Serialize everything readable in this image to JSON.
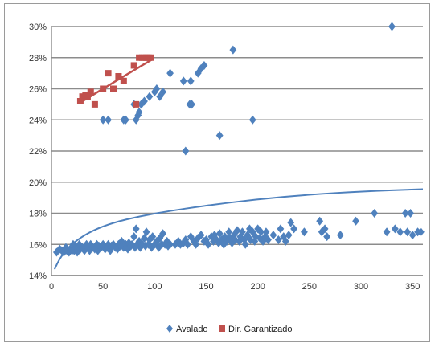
{
  "chart_data": {
    "type": "scatter",
    "title": "",
    "xlabel": "",
    "ylabel": "",
    "xlim": [
      0,
      360
    ],
    "ylim": [
      14,
      30
    ],
    "xticks": [
      0,
      50,
      100,
      150,
      200,
      250,
      300,
      350
    ],
    "yticks": [
      14,
      16,
      18,
      20,
      22,
      24,
      26,
      28,
      30
    ],
    "ytick_labels": [
      "14%",
      "16%",
      "18%",
      "20%",
      "22%",
      "24%",
      "26%",
      "28%",
      "30%"
    ],
    "grid": "horizontal",
    "legend_position": "bottom",
    "series": [
      {
        "name": "Avalado",
        "marker": "diamond",
        "color": "#4f81bd",
        "points": [
          [
            5,
            15.5
          ],
          [
            8,
            15.7
          ],
          [
            10,
            15.6
          ],
          [
            12,
            15.5
          ],
          [
            14,
            15.8
          ],
          [
            15,
            15.6
          ],
          [
            17,
            15.5
          ],
          [
            18,
            15.7
          ],
          [
            20,
            15.6
          ],
          [
            21,
            16
          ],
          [
            22,
            15.6
          ],
          [
            24,
            15.8
          ],
          [
            25,
            15.5
          ],
          [
            27,
            16
          ],
          [
            28,
            15.7
          ],
          [
            30,
            15.8
          ],
          [
            32,
            15.6
          ],
          [
            34,
            16
          ],
          [
            35,
            15.8
          ],
          [
            37,
            15.6
          ],
          [
            38,
            16
          ],
          [
            40,
            15.8
          ],
          [
            42,
            15.7
          ],
          [
            44,
            16
          ],
          [
            45,
            15.6
          ],
          [
            46,
            15.9
          ],
          [
            48,
            15.8
          ],
          [
            50,
            16
          ],
          [
            52,
            15.7
          ],
          [
            54,
            15.8
          ],
          [
            55,
            16
          ],
          [
            57,
            15.6
          ],
          [
            58,
            15.9
          ],
          [
            60,
            16
          ],
          [
            62,
            15.8
          ],
          [
            64,
            15.7
          ],
          [
            65,
            16
          ],
          [
            67,
            15.9
          ],
          [
            68,
            16.2
          ],
          [
            70,
            15.8
          ],
          [
            72,
            16
          ],
          [
            74,
            15.7
          ],
          [
            75,
            16.1
          ],
          [
            77,
            15.9
          ],
          [
            78,
            16
          ],
          [
            80,
            16.5
          ],
          [
            81,
            15.8
          ],
          [
            82,
            17
          ],
          [
            83,
            16
          ],
          [
            85,
            16.2
          ],
          [
            86,
            15.8
          ],
          [
            88,
            16
          ],
          [
            90,
            16.4
          ],
          [
            91,
            15.9
          ],
          [
            92,
            16.8
          ],
          [
            94,
            16
          ],
          [
            95,
            16.3
          ],
          [
            97,
            15.8
          ],
          [
            98,
            16.5
          ],
          [
            100,
            16
          ],
          [
            102,
            16.2
          ],
          [
            104,
            15.8
          ],
          [
            105,
            16.4
          ],
          [
            107,
            16
          ],
          [
            108,
            16.7
          ],
          [
            110,
            16
          ],
          [
            112,
            16.2
          ],
          [
            113,
            15.9
          ],
          [
            115,
            16
          ],
          [
            120,
            16
          ],
          [
            123,
            16.2
          ],
          [
            125,
            16
          ],
          [
            128,
            16.1
          ],
          [
            130,
            16.3
          ],
          [
            132,
            16
          ],
          [
            135,
            16.5
          ],
          [
            138,
            16.2
          ],
          [
            140,
            16
          ],
          [
            142,
            16.4
          ],
          [
            145,
            16.6
          ],
          [
            148,
            16.2
          ],
          [
            150,
            16.3
          ],
          [
            152,
            16
          ],
          [
            155,
            16.5
          ],
          [
            157,
            16.2
          ],
          [
            158,
            16.6
          ],
          [
            160,
            16.3
          ],
          [
            162,
            16.1
          ],
          [
            163,
            16.7
          ],
          [
            165,
            16.3
          ],
          [
            167,
            16
          ],
          [
            168,
            16.5
          ],
          [
            170,
            16.2
          ],
          [
            172,
            16.8
          ],
          [
            173,
            16.4
          ],
          [
            175,
            16.1
          ],
          [
            177,
            16.6
          ],
          [
            178,
            16.3
          ],
          [
            180,
            16.9
          ],
          [
            182,
            16.2
          ],
          [
            183,
            16.5
          ],
          [
            185,
            16.8
          ],
          [
            187,
            16.3
          ],
          [
            188,
            16
          ],
          [
            190,
            16.6
          ],
          [
            192,
            17
          ],
          [
            193,
            16.3
          ],
          [
            195,
            16.8
          ],
          [
            197,
            16.2
          ],
          [
            198,
            16.5
          ],
          [
            200,
            17
          ],
          [
            202,
            16.4
          ],
          [
            203,
            16.8
          ],
          [
            205,
            16.2
          ],
          [
            207,
            16.5
          ],
          [
            208,
            16.8
          ],
          [
            210,
            16.3
          ],
          [
            215,
            16.6
          ],
          [
            220,
            16.3
          ],
          [
            222,
            17
          ],
          [
            225,
            16.5
          ],
          [
            227,
            16.2
          ],
          [
            230,
            16.6
          ],
          [
            232,
            17.4
          ],
          [
            235,
            17
          ],
          [
            245,
            16.8
          ],
          [
            260,
            17.5
          ],
          [
            262,
            16.8
          ],
          [
            265,
            17
          ],
          [
            267,
            16.5
          ],
          [
            280,
            16.6
          ],
          [
            295,
            17.5
          ],
          [
            313,
            18
          ],
          [
            325,
            16.8
          ],
          [
            333,
            17
          ],
          [
            338,
            16.8
          ],
          [
            343,
            18
          ],
          [
            345,
            16.8
          ],
          [
            348,
            18
          ],
          [
            350,
            16.6
          ],
          [
            355,
            16.8
          ],
          [
            358,
            16.8
          ],
          [
            50,
            24
          ],
          [
            55,
            24
          ],
          [
            70,
            24
          ],
          [
            72,
            24
          ],
          [
            80,
            25
          ],
          [
            82,
            24
          ],
          [
            84,
            24.3
          ],
          [
            85,
            24.5
          ],
          [
            87,
            25
          ],
          [
            90,
            25.2
          ],
          [
            95,
            25.5
          ],
          [
            100,
            25.8
          ],
          [
            102,
            26
          ],
          [
            105,
            25.5
          ],
          [
            108,
            25.8
          ],
          [
            115,
            27
          ],
          [
            128,
            26.5
          ],
          [
            130,
            22
          ],
          [
            134,
            25
          ],
          [
            135,
            26.5
          ],
          [
            136,
            25
          ],
          [
            142,
            27
          ],
          [
            145,
            27.3
          ],
          [
            148,
            27.5
          ],
          [
            163,
            23
          ],
          [
            176,
            28.5
          ],
          [
            195,
            24
          ],
          [
            330,
            30
          ]
        ]
      },
      {
        "name": "Dir. Garantizado",
        "marker": "square",
        "color": "#c0504d",
        "points": [
          [
            28,
            25.2
          ],
          [
            30,
            25.5
          ],
          [
            33,
            25.6
          ],
          [
            35,
            25.5
          ],
          [
            38,
            25.8
          ],
          [
            42,
            25
          ],
          [
            50,
            26
          ],
          [
            55,
            27
          ],
          [
            60,
            26
          ],
          [
            65,
            26.8
          ],
          [
            70,
            26.5
          ],
          [
            80,
            27.5
          ],
          [
            82,
            25
          ],
          [
            85,
            28
          ],
          [
            88,
            28
          ],
          [
            90,
            28
          ],
          [
            92,
            28
          ],
          [
            94,
            28
          ],
          [
            96,
            28
          ]
        ],
        "trend": [
          [
            30,
            25.2
          ],
          [
            50,
            26.0
          ],
          [
            75,
            27.0
          ],
          [
            98,
            27.9
          ]
        ]
      }
    ],
    "trendline": {
      "color": "#4f81bd",
      "points": [
        [
          3,
          14.4
        ],
        [
          8,
          15.1
        ],
        [
          15,
          15.7
        ],
        [
          25,
          16.3
        ],
        [
          40,
          16.9
        ],
        [
          60,
          17.4
        ],
        [
          85,
          17.8
        ],
        [
          110,
          18.1
        ],
        [
          150,
          18.5
        ],
        [
          200,
          18.9
        ],
        [
          250,
          19.2
        ],
        [
          300,
          19.4
        ],
        [
          360,
          19.55
        ]
      ]
    }
  },
  "legend": {
    "items": [
      {
        "label": "Avalado",
        "color": "#4f81bd",
        "marker": "diamond"
      },
      {
        "label": "Dir. Garantizado",
        "color": "#c0504d",
        "marker": "square"
      }
    ]
  }
}
